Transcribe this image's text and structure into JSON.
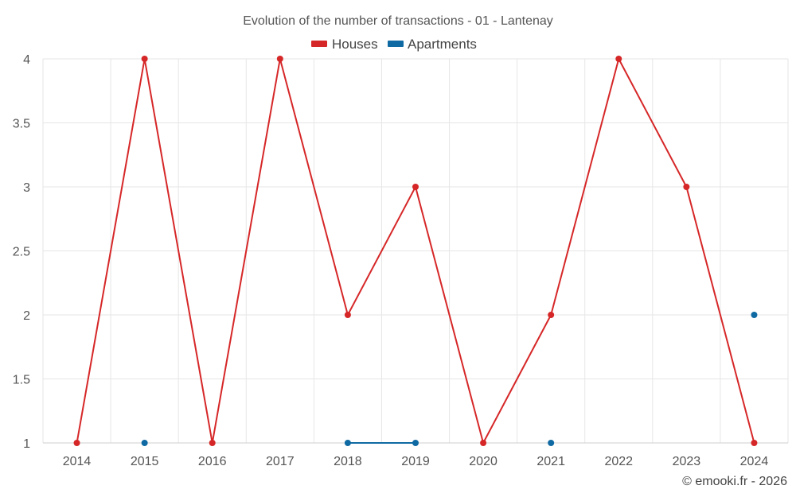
{
  "chart_data": {
    "type": "line",
    "title": "Evolution of the number of transactions - 01 - Lantenay",
    "x": [
      "2014",
      "2015",
      "2016",
      "2017",
      "2018",
      "2019",
      "2020",
      "2021",
      "2022",
      "2023",
      "2024"
    ],
    "ylim": [
      1,
      4
    ],
    "yticks": [
      "1",
      "1.5",
      "2",
      "2.5",
      "3",
      "3.5",
      "4"
    ],
    "ytick_values": [
      1,
      1.5,
      2,
      2.5,
      3,
      3.5,
      4
    ],
    "grid": true,
    "legend_position": "top-center",
    "series": [
      {
        "name": "Houses",
        "color": "#d62728",
        "values": [
          1,
          4,
          1,
          4,
          2,
          3,
          1,
          2,
          4,
          3,
          1
        ]
      },
      {
        "name": "Apartments",
        "color": "#0f6aa3",
        "values": [
          null,
          1,
          null,
          null,
          1,
          1,
          null,
          1,
          null,
          null,
          2
        ]
      }
    ]
  },
  "credit": "© emooki.fr - 2026"
}
